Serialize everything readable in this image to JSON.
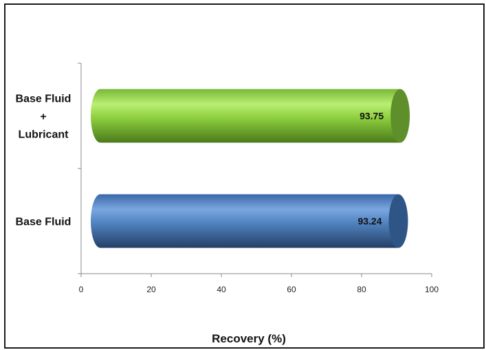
{
  "chart_data": {
    "type": "bar",
    "orientation": "horizontal",
    "style": "3d-cylinder",
    "categories": [
      "Base Fluid",
      "Base Fluid + Lubricant"
    ],
    "category_label_lines": [
      [
        "Base Fluid"
      ],
      [
        "Base Fluid",
        "+",
        "Lubricant"
      ]
    ],
    "values": [
      93.24,
      93.75
    ],
    "data_labels": [
      "93.24",
      "93.75"
    ],
    "colors": [
      "#4f81bd",
      "#8ccd3d"
    ],
    "xlabel": "Recovery (%)",
    "xlim": [
      0,
      100
    ],
    "x_ticks": [
      "0",
      "20",
      "40",
      "60",
      "80",
      "100"
    ],
    "grid": false,
    "legend": "none"
  }
}
